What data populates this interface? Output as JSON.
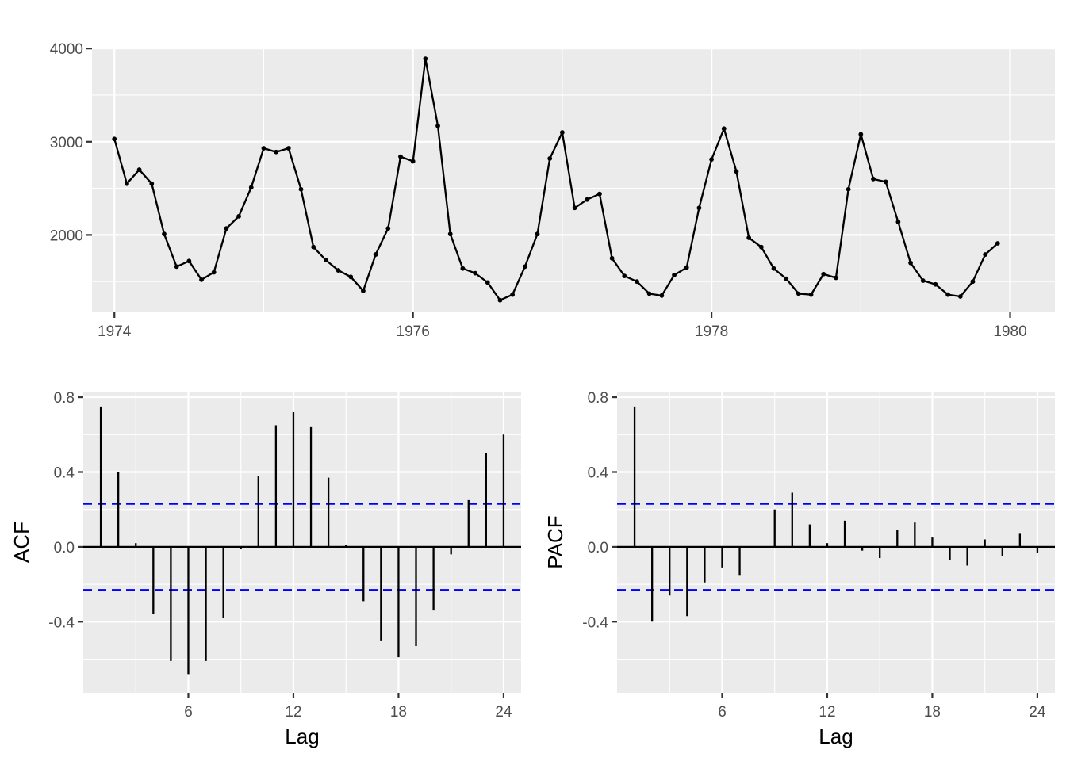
{
  "colors": {
    "panel_bg": "#EBEBEB",
    "grid": "#FFFFFF",
    "line": "#000000",
    "ci_line": "#0000FF",
    "tick_text": "#4D4D4D"
  },
  "chart_data": [
    {
      "type": "line",
      "title": "",
      "xlabel": "",
      "ylabel": "",
      "xlim": [
        1973.85,
        1980.3
      ],
      "ylim": [
        1170,
        4010
      ],
      "x_ticks": [
        1974,
        1976,
        1978,
        1980
      ],
      "x_tick_labels": [
        "1974",
        "1976",
        "1978",
        "1980"
      ],
      "y_ticks": [
        2000,
        3000,
        4000
      ],
      "y_tick_labels": [
        "2000",
        "3000",
        "4000"
      ],
      "markers": true,
      "grid": true,
      "series": [
        {
          "x_start": 1974,
          "frequency": 12,
          "values": [
            3030,
            2550,
            2700,
            2550,
            2010,
            1660,
            1720,
            1520,
            1600,
            2070,
            2200,
            2510,
            2930,
            2890,
            2930,
            2490,
            1870,
            1730,
            1620,
            1550,
            1400,
            1790,
            2070,
            2840,
            2790,
            3890,
            3170,
            2010,
            1640,
            1590,
            1490,
            1300,
            1360,
            1660,
            2010,
            2820,
            3100,
            2290,
            2380,
            2440,
            1750,
            1560,
            1500,
            1370,
            1350,
            1570,
            1650,
            2290,
            2810,
            3140,
            2680,
            1970,
            1870,
            1640,
            1530,
            1370,
            1360,
            1580,
            1540,
            2490,
            3080,
            2600,
            2570,
            2140,
            1700,
            1510,
            1470,
            1360,
            1340,
            1500,
            1790,
            1910
          ]
        }
      ]
    },
    {
      "type": "bar",
      "subtype": "correlogram",
      "xlabel": "Lag",
      "ylabel": "ACF",
      "xlim": [
        0,
        25
      ],
      "ylim": [
        -0.78,
        0.83
      ],
      "x_ticks": [
        6,
        12,
        18,
        24
      ],
      "x_tick_labels": [
        "6",
        "12",
        "18",
        "24"
      ],
      "y_ticks": [
        -0.4,
        0,
        0.4,
        0.8
      ],
      "y_tick_labels": [
        "-0.4",
        "0.0",
        "0.4",
        "0.8"
      ],
      "ci": 0.23,
      "lags": [
        1,
        2,
        3,
        4,
        5,
        6,
        7,
        8,
        9,
        10,
        11,
        12,
        13,
        14,
        15,
        16,
        17,
        18,
        19,
        20,
        21,
        22,
        23,
        24
      ],
      "values": [
        0.75,
        0.4,
        0.02,
        -0.36,
        -0.61,
        -0.68,
        -0.61,
        -0.38,
        -0.01,
        0.38,
        0.65,
        0.72,
        0.64,
        0.37,
        0.01,
        -0.29,
        -0.5,
        -0.59,
        -0.53,
        -0.34,
        -0.04,
        0.25,
        0.5,
        0.6
      ]
    },
    {
      "type": "bar",
      "subtype": "correlogram",
      "xlabel": "Lag",
      "ylabel": "PACF",
      "xlim": [
        0,
        25
      ],
      "ylim": [
        -0.78,
        0.83
      ],
      "x_ticks": [
        6,
        12,
        18,
        24
      ],
      "x_tick_labels": [
        "6",
        "12",
        "18",
        "24"
      ],
      "y_ticks": [
        -0.4,
        0,
        0.4,
        0.8
      ],
      "y_tick_labels": [
        "-0.4",
        "0.0",
        "0.4",
        "0.8"
      ],
      "ci": 0.23,
      "lags": [
        1,
        2,
        3,
        4,
        5,
        6,
        7,
        8,
        9,
        10,
        11,
        12,
        13,
        14,
        15,
        16,
        17,
        18,
        19,
        20,
        21,
        22,
        23,
        24
      ],
      "values": [
        0.75,
        -0.4,
        -0.26,
        -0.37,
        -0.19,
        -0.11,
        -0.15,
        0.0,
        0.2,
        0.29,
        0.12,
        0.02,
        0.14,
        -0.02,
        -0.06,
        0.09,
        0.13,
        0.05,
        -0.07,
        -0.1,
        0.04,
        -0.05,
        0.07,
        -0.03
      ]
    }
  ]
}
